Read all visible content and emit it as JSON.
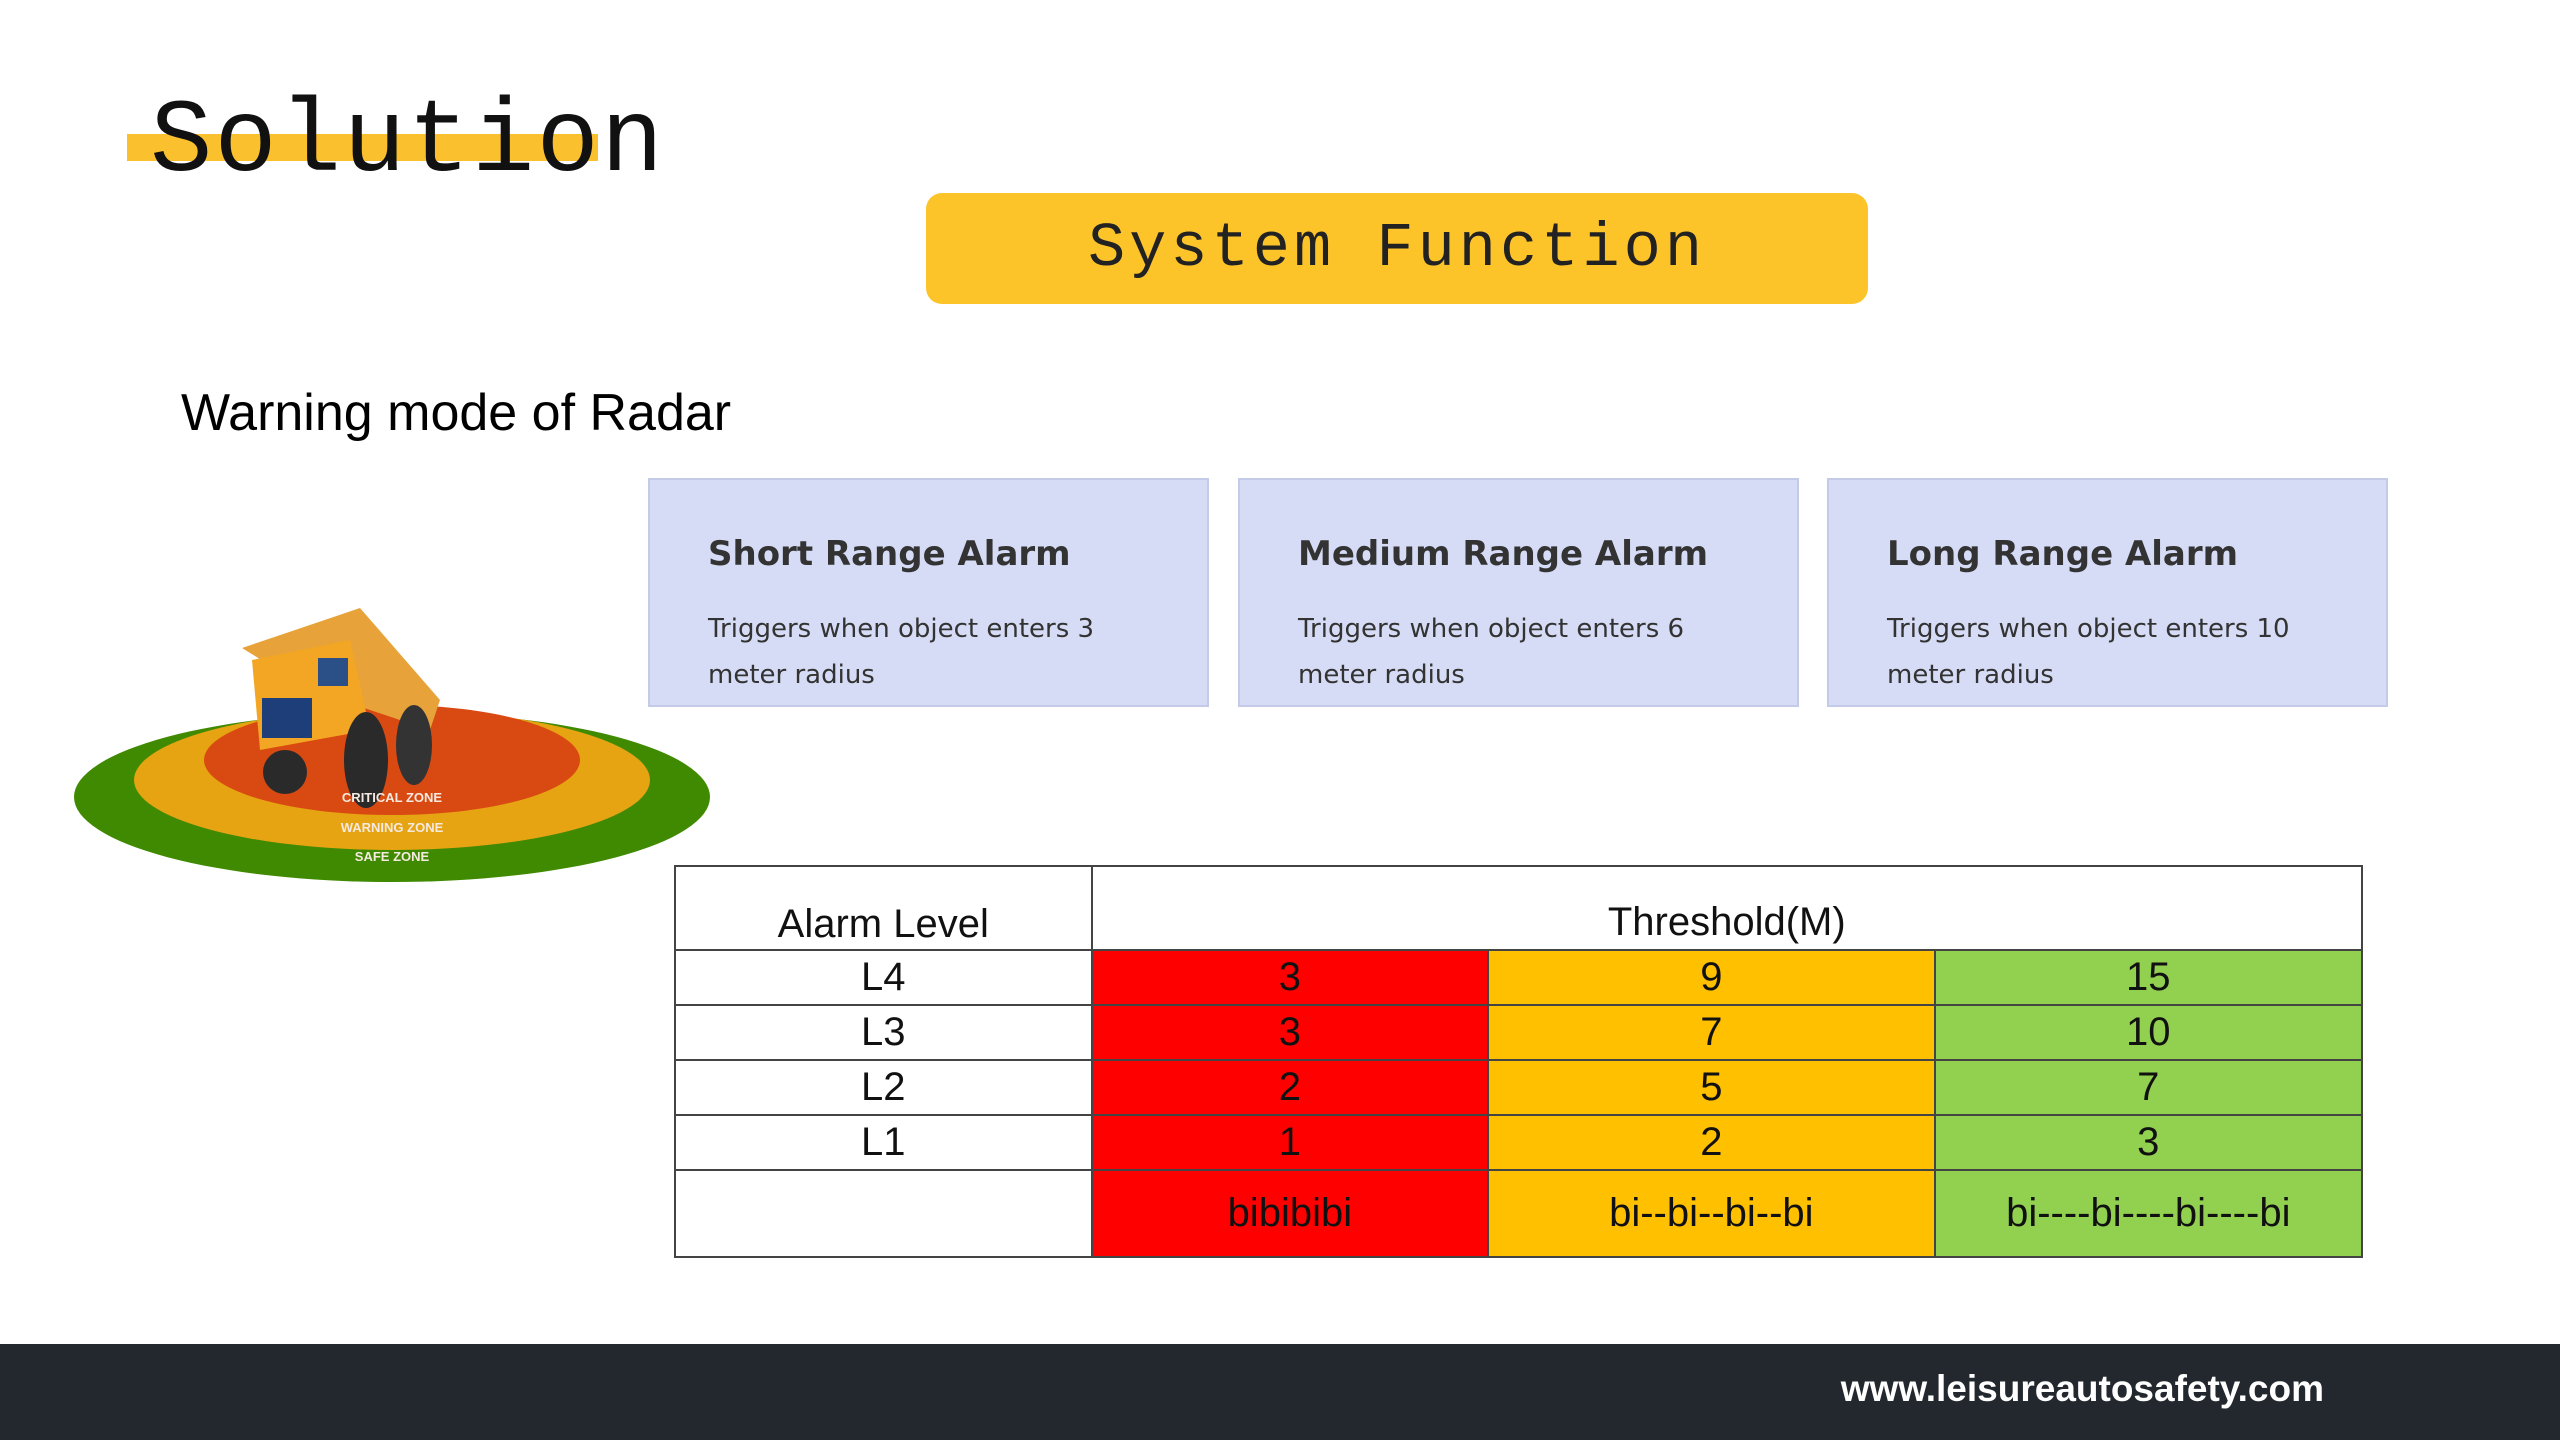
{
  "slide": {
    "title": "Solution",
    "section": "System Function",
    "subtitle": "Warning mode of Radar"
  },
  "cards": [
    {
      "title": "Short Range Alarm",
      "body": "Triggers when object enters 3 meter radius"
    },
    {
      "title": "Medium Range Alarm",
      "body": "Triggers when object enters 6 meter radius"
    },
    {
      "title": "Long Range Alarm",
      "body": "Triggers when object enters 10 meter radius"
    }
  ],
  "zones": {
    "critical": "CRITICAL ZONE",
    "warning": "WARNING ZONE",
    "safe": "SAFE ZONE"
  },
  "table": {
    "header_level": "Alarm Level",
    "header_threshold": "Threshold(M)",
    "rows": [
      {
        "level": "L4",
        "values": [
          "3",
          "9",
          "15"
        ]
      },
      {
        "level": "L3",
        "values": [
          "3",
          "7",
          "10"
        ]
      },
      {
        "level": "L2",
        "values": [
          "2",
          "5",
          "7"
        ]
      },
      {
        "level": "L1",
        "values": [
          "1",
          "2",
          "3"
        ]
      }
    ],
    "sounds": [
      "bibibibi",
      "bi--bi--bi--bi",
      "bi----bi----bi----bi"
    ]
  },
  "colors": {
    "accent": "#fdc42a",
    "red": "#ff0000",
    "amber": "#ffc000",
    "green": "#92d050",
    "footer": "#23272e"
  },
  "footer": {
    "url": "www.leisureautosafety.com"
  }
}
